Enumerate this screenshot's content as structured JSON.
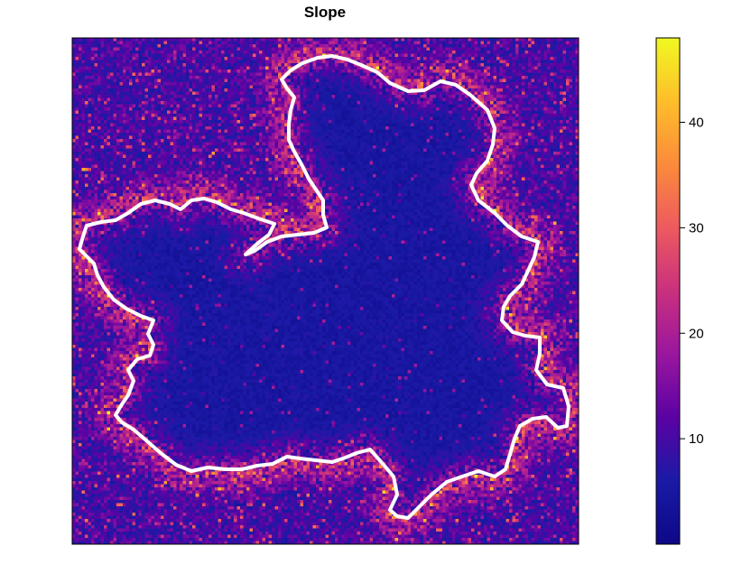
{
  "chart_data": {
    "type": "heatmap",
    "title": "Slope",
    "xlabel": "",
    "ylabel": "",
    "legend": {
      "position": "right",
      "zlim": [
        0,
        48
      ],
      "ticks": [
        10,
        20,
        30,
        40
      ],
      "tick_labels": [
        "10",
        "20",
        "30",
        "40"
      ],
      "colors": [
        "#0d0887",
        "#1a1aa6",
        "#5b02a3",
        "#9a169f",
        "#c9307e",
        "#ed5a5f",
        "#fb8b3b",
        "#febe2a",
        "#f0f921"
      ]
    },
    "raster": {
      "grid_cols": 160,
      "grid_rows": 160,
      "background_mean": 5,
      "ridge_note": "high slope along outer edges and ridges"
    },
    "boundary": {
      "color": "#ffffff",
      "present": true
    }
  }
}
